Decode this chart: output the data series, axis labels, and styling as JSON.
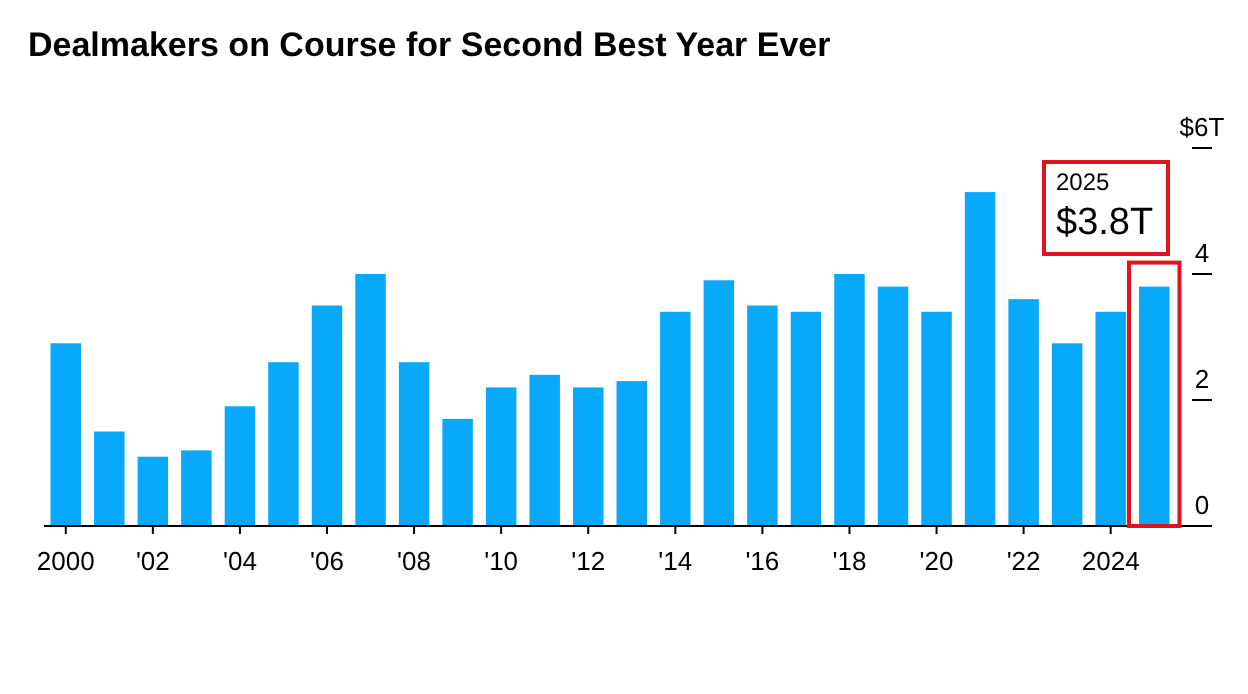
{
  "chart_data": {
    "type": "bar",
    "title": "Dealmakers on Course for Second Best Year Ever",
    "categories": [
      "2000",
      null,
      "'02",
      null,
      "'04",
      null,
      "'06",
      null,
      "'08",
      null,
      "'10",
      null,
      "'12",
      null,
      "'14",
      null,
      "'16",
      null,
      "'18",
      null,
      "'20",
      null,
      "'22",
      null,
      "2024",
      null
    ],
    "values": [
      2.9,
      1.5,
      1.1,
      1.2,
      1.9,
      2.6,
      3.5,
      4.0,
      2.6,
      1.7,
      2.2,
      2.4,
      2.2,
      2.3,
      3.4,
      3.9,
      3.5,
      3.4,
      4.0,
      3.8,
      3.4,
      5.3,
      3.6,
      2.9,
      3.4,
      3.8
    ],
    "color": "#08a8fa",
    "ylim": [
      0,
      6
    ],
    "yticks": [
      {
        "value": 6,
        "label": "$6T"
      },
      4,
      2,
      0
    ],
    "grid": false,
    "annotations": [
      "2025\n$3.8T"
    ]
  }
}
